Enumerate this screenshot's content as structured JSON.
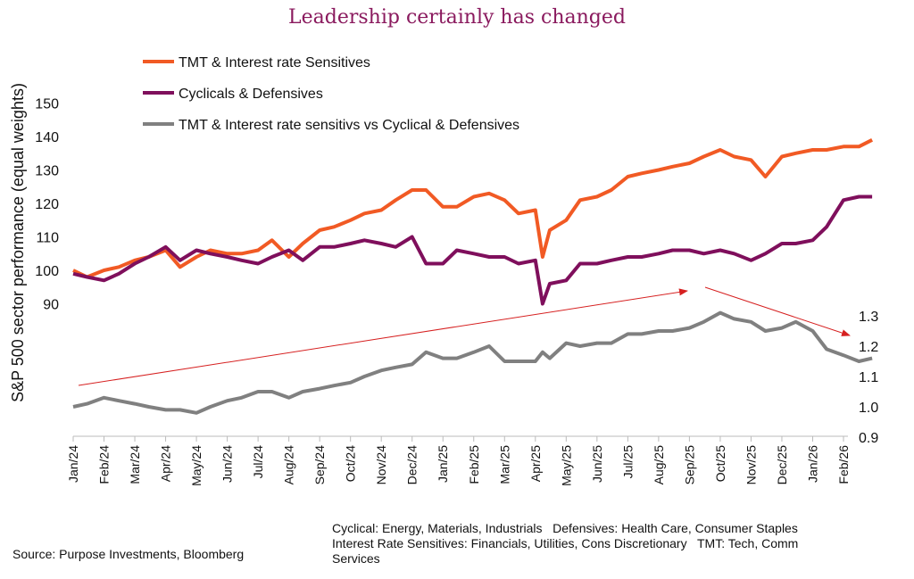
{
  "chart_data": {
    "type": "line",
    "title": "Leadership certainly has changed",
    "ylabel": "S&P 500 sector performance (equal weights)",
    "left_axis": {
      "ticks": [
        90,
        100,
        110,
        120,
        130,
        140,
        150
      ],
      "range": [
        90,
        150
      ]
    },
    "right_axis": {
      "ticks": [
        "0.9",
        "1.0",
        "1.1",
        "1.2",
        "1.3"
      ],
      "range": [
        0.9,
        1.3
      ]
    },
    "x_ticks": [
      "Jan/24",
      "Feb/24",
      "Mar/24",
      "Apr/24",
      "May/24",
      "Jun/24",
      "Jul/24",
      "Aug/24",
      "Sep/24",
      "Oct/24",
      "Nov/24",
      "Dec/24",
      "Jan/25",
      "Feb/25",
      "Mar/25",
      "Apr/25",
      "May/25",
      "Jun/25",
      "Jul/25",
      "Aug/25",
      "Sep/25",
      "Oct/25",
      "Nov/25",
      "Dec/25",
      "Jan/26",
      "Feb/26"
    ],
    "grid": false,
    "legend_position": "top-left",
    "x": [
      "2024-01-01",
      "2024-01-15",
      "2024-02-01",
      "2024-02-15",
      "2024-03-01",
      "2024-03-15",
      "2024-04-01",
      "2024-04-15",
      "2024-05-01",
      "2024-05-15",
      "2024-06-01",
      "2024-06-15",
      "2024-07-01",
      "2024-07-15",
      "2024-08-01",
      "2024-08-15",
      "2024-09-01",
      "2024-09-15",
      "2024-10-01",
      "2024-10-15",
      "2024-11-01",
      "2024-11-15",
      "2024-12-01",
      "2024-12-15",
      "2025-01-01",
      "2025-01-15",
      "2025-02-01",
      "2025-02-15",
      "2025-03-01",
      "2025-03-15",
      "2025-04-01",
      "2025-04-08",
      "2025-04-15",
      "2025-05-01",
      "2025-05-15",
      "2025-06-01",
      "2025-06-15",
      "2025-07-01",
      "2025-07-15",
      "2025-08-01",
      "2025-08-15",
      "2025-09-01",
      "2025-09-15",
      "2025-10-01",
      "2025-10-15",
      "2025-11-01",
      "2025-11-15",
      "2025-12-01",
      "2025-12-15",
      "2026-01-01",
      "2026-01-15",
      "2026-02-01",
      "2026-02-15",
      "2026-02-27"
    ],
    "series": [
      {
        "name": "TMT & Interest rate Sensitives",
        "axis": "left",
        "color": "#f15a24",
        "values": [
          100,
          98,
          100,
          101,
          103,
          104,
          106,
          101,
          104,
          106,
          105,
          105,
          106,
          109,
          104,
          108,
          112,
          113,
          115,
          117,
          118,
          121,
          124,
          124,
          119,
          119,
          122,
          123,
          121,
          117,
          118,
          104,
          112,
          115,
          121,
          122,
          124,
          128,
          129,
          130,
          131,
          132,
          134,
          136,
          134,
          133,
          128,
          134,
          135,
          136,
          136,
          137,
          137,
          139
        ]
      },
      {
        "name": "Cyclicals & Defensives",
        "axis": "left",
        "color": "#7f0f5c",
        "values": [
          99,
          98,
          97,
          99,
          102,
          104,
          107,
          103,
          106,
          105,
          104,
          103,
          102,
          104,
          106,
          103,
          107,
          107,
          108,
          109,
          108,
          107,
          110,
          102,
          102,
          106,
          105,
          104,
          104,
          102,
          103,
          90,
          96,
          97,
          102,
          102,
          103,
          104,
          104,
          105,
          106,
          106,
          105,
          106,
          105,
          103,
          105,
          108,
          108,
          109,
          113,
          121,
          122,
          122
        ]
      },
      {
        "name": "TMT & Interest rate sensitivs vs Cyclical & Defensives",
        "axis": "right",
        "color": "#808080",
        "values": [
          1.0,
          1.01,
          1.03,
          1.02,
          1.01,
          1.0,
          0.99,
          0.99,
          0.98,
          1.0,
          1.02,
          1.03,
          1.05,
          1.05,
          1.03,
          1.05,
          1.06,
          1.07,
          1.08,
          1.1,
          1.12,
          1.13,
          1.14,
          1.18,
          1.16,
          1.16,
          1.18,
          1.2,
          1.15,
          1.15,
          1.15,
          1.18,
          1.16,
          1.21,
          1.2,
          1.21,
          1.21,
          1.24,
          1.24,
          1.25,
          1.25,
          1.26,
          1.28,
          1.31,
          1.29,
          1.28,
          1.25,
          1.26,
          1.28,
          1.25,
          1.19,
          1.17,
          1.15,
          1.16
        ]
      }
    ],
    "annotations": [
      "upward-trend-arrow",
      "downward-trend-arrow"
    ]
  },
  "notes": {
    "source": "Source: Purpose Investments, Bloomberg",
    "definitions_line1": "Cyclical: Energy, Materials, Industrials   Defensives: Health Care, Consumer Staples",
    "definitions_line2": "Interest Rate Sensitives: Financials, Utilities, Cons Discretionary   TMT: Tech, Comm",
    "definitions_line3": "Services"
  },
  "colors": {
    "title": "#8a1a5e",
    "arrow": "#d62020"
  }
}
